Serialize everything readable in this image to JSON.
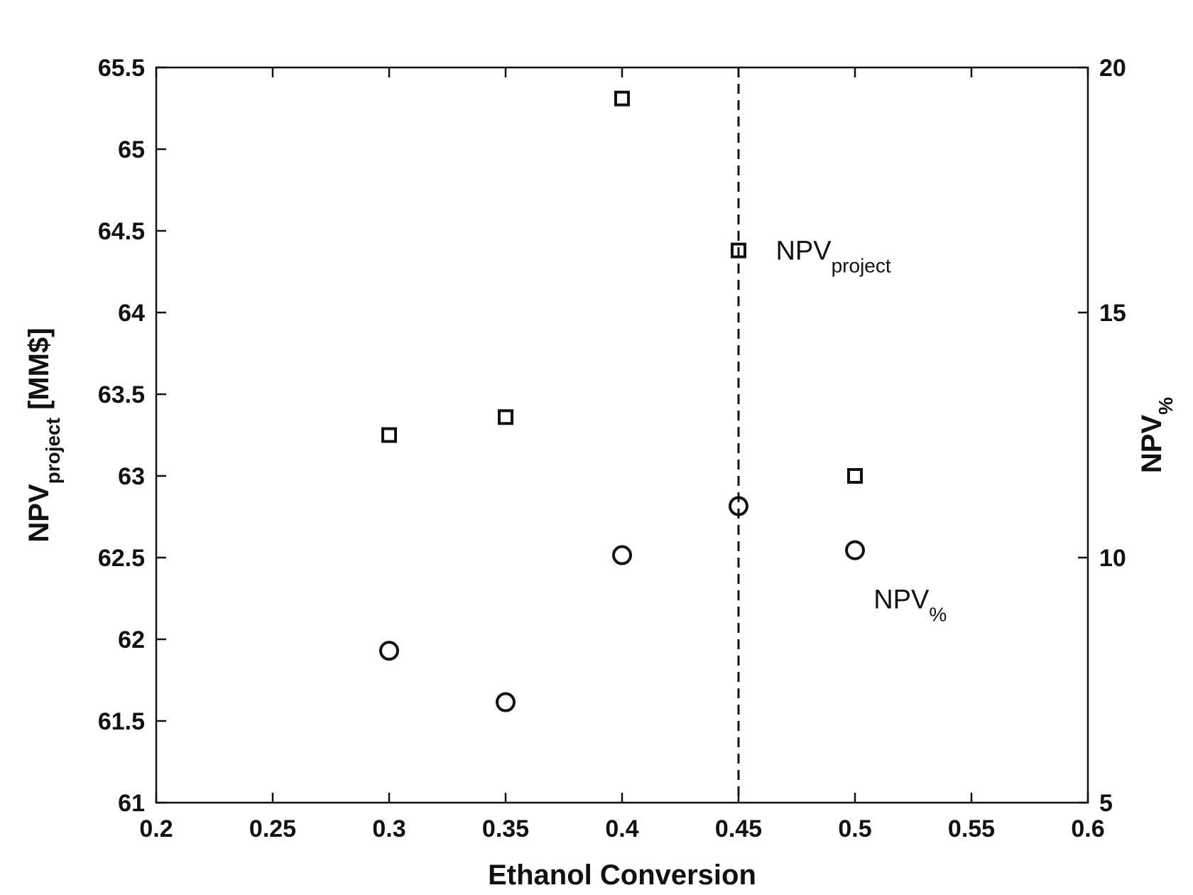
{
  "chart_data": {
    "type": "scatter",
    "xlabel": "Ethanol Conversion",
    "ylabel": {
      "main": "NPV",
      "sub": "project",
      "unit": " [MM$]"
    },
    "y2label": {
      "main": "NPV",
      "sub": "%"
    },
    "xlim": [
      0.2,
      0.6
    ],
    "ylim": [
      61,
      65.5
    ],
    "y2lim": [
      5,
      20
    ],
    "x_ticks": [
      "0.2",
      "0.25",
      "0.3",
      "0.35",
      "0.4",
      "0.45",
      "0.5",
      "0.55",
      "0.6"
    ],
    "y_ticks": [
      "61",
      "61.5",
      "62",
      "62.5",
      "63",
      "63.5",
      "64",
      "64.5",
      "65",
      "65.5"
    ],
    "y2_ticks": [
      "5",
      "10",
      "15",
      "20"
    ],
    "grid": false,
    "vline_x": 0.45,
    "series": [
      {
        "axis": "left",
        "marker": "square",
        "x": [
          0.3,
          0.35,
          0.4,
          0.45,
          0.5
        ],
        "y": [
          63.25,
          63.36,
          65.31,
          64.38,
          63.0
        ]
      },
      {
        "axis": "right",
        "marker": "circle",
        "x": [
          0.3,
          0.35,
          0.4,
          0.45,
          0.5
        ],
        "y": [
          8.1,
          7.05,
          10.05,
          11.05,
          10.15
        ]
      }
    ],
    "annotations": [
      {
        "main": "NPV",
        "sub": "project",
        "x": 0.466,
        "y": 64.38
      },
      {
        "main": "NPV",
        "sub": "%",
        "x": 0.508,
        "y": 9.15,
        "axis": "right"
      }
    ]
  }
}
